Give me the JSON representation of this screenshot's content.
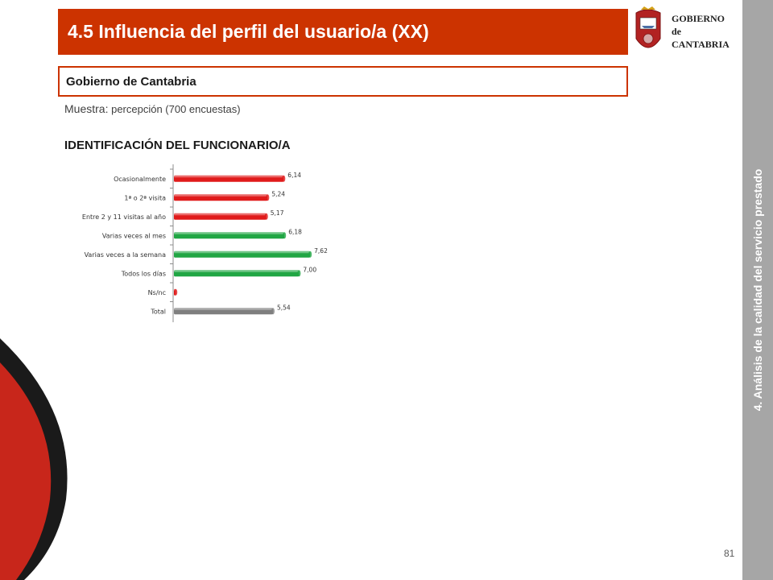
{
  "header": {
    "title": "4.5 Influencia del perfil del usuario/a (XX)"
  },
  "logo": {
    "line1": "GOBIERNO",
    "line2": "de",
    "line3": "CANTABRIA"
  },
  "side_label": "4. Análisis de la calidad del servicio prestado",
  "subheader": "Gobierno de Cantabria",
  "sample": {
    "label": "Muestra:",
    "text": "percepción (700 encuestas)"
  },
  "section_title": "IDENTIFICACIÓN DEL FUNCIONARIO/A",
  "page_number": "81",
  "colors": {
    "accent": "#cc3300",
    "red_bar": "#e01b1b",
    "green_bar": "#21a644",
    "gray_bar": "#7f7f7f",
    "side_band": "#a6a6a6"
  },
  "chart_data": {
    "type": "bar",
    "orientation": "horizontal",
    "categories": [
      "Ocasionalmente",
      "1ª o 2ª visita",
      "Entre 2 y 11 visitas al año",
      "Varias veces al mes",
      "Varias veces a la semana",
      "Todos los días",
      "Ns/nc",
      "Total"
    ],
    "values": [
      6.14,
      5.24,
      5.17,
      6.18,
      7.62,
      7.0,
      0.1,
      5.54
    ],
    "value_labels": [
      "6,14",
      "5,24",
      "5,17",
      "6,18",
      "7,62",
      "7,00",
      "",
      "5,54"
    ],
    "bar_colors": [
      "red",
      "red",
      "red",
      "green",
      "green",
      "green",
      "red",
      "gray"
    ],
    "xlim": [
      0,
      10
    ],
    "grid": false,
    "legend": "none"
  }
}
